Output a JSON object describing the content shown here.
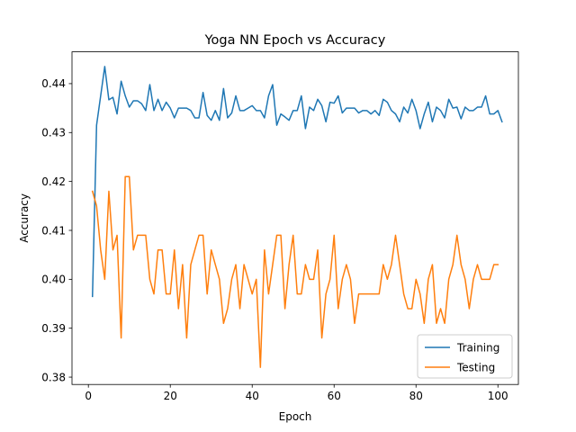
{
  "chart_data": {
    "type": "line",
    "title": "Yoga NN Epoch vs Accuracy",
    "xlabel": "Epoch",
    "ylabel": "Accuracy",
    "xlim": [
      -4,
      105
    ],
    "ylim": [
      0.3785,
      0.4465
    ],
    "xticks": [
      0,
      20,
      40,
      60,
      80,
      100
    ],
    "yticks": [
      0.38,
      0.39,
      0.4,
      0.41,
      0.42,
      0.43,
      0.44
    ],
    "ytick_labels": [
      "0.38",
      "0.39",
      "0.40",
      "0.41",
      "0.42",
      "0.43",
      "0.44"
    ],
    "grid": false,
    "legend_position": "lower-right",
    "series": [
      {
        "name": "Training",
        "color": "#1f77b4",
        "values": [
          0.3965,
          0.4315,
          0.4375,
          0.4435,
          0.4367,
          0.4372,
          0.4338,
          0.4405,
          0.4375,
          0.4352,
          0.4365,
          0.4365,
          0.4359,
          0.4345,
          0.4398,
          0.4345,
          0.4368,
          0.4345,
          0.4362,
          0.435,
          0.433,
          0.435,
          0.435,
          0.435,
          0.4345,
          0.433,
          0.433,
          0.4382,
          0.4335,
          0.4325,
          0.4345,
          0.4325,
          0.439,
          0.433,
          0.434,
          0.4375,
          0.4345,
          0.4345,
          0.435,
          0.4355,
          0.4345,
          0.4345,
          0.433,
          0.4375,
          0.4398,
          0.4315,
          0.4338,
          0.4332,
          0.4325,
          0.4345,
          0.4345,
          0.4375,
          0.4308,
          0.4352,
          0.4345,
          0.4368,
          0.4355,
          0.4322,
          0.4362,
          0.436,
          0.4375,
          0.434,
          0.435,
          0.435,
          0.435,
          0.434,
          0.4345,
          0.4345,
          0.4338,
          0.4345,
          0.4335,
          0.4368,
          0.4362,
          0.4345,
          0.4338,
          0.4322,
          0.4352,
          0.434,
          0.4368,
          0.4345,
          0.4308,
          0.4338,
          0.4362,
          0.4322,
          0.4352,
          0.4345,
          0.433,
          0.4368,
          0.435,
          0.4352,
          0.4328,
          0.4352,
          0.4345,
          0.4345,
          0.4352,
          0.4352,
          0.4375,
          0.4338,
          0.4338,
          0.4345,
          0.4322
        ]
      },
      {
        "name": "Testing",
        "color": "#ff7f0e",
        "values": [
          0.418,
          0.415,
          0.406,
          0.4,
          0.418,
          0.406,
          0.409,
          0.388,
          0.421,
          0.421,
          0.406,
          0.409,
          0.409,
          0.409,
          0.4,
          0.397,
          0.406,
          0.406,
          0.397,
          0.397,
          0.406,
          0.394,
          0.403,
          0.388,
          0.403,
          0.406,
          0.409,
          0.409,
          0.397,
          0.406,
          0.403,
          0.4,
          0.391,
          0.394,
          0.4,
          0.403,
          0.394,
          0.403,
          0.4,
          0.397,
          0.4,
          0.382,
          0.406,
          0.397,
          0.403,
          0.409,
          0.409,
          0.394,
          0.403,
          0.409,
          0.397,
          0.397,
          0.403,
          0.4,
          0.4,
          0.406,
          0.388,
          0.397,
          0.4,
          0.409,
          0.394,
          0.4,
          0.403,
          0.4,
          0.391,
          0.397,
          0.397,
          0.397,
          0.397,
          0.397,
          0.397,
          0.403,
          0.4,
          0.403,
          0.409,
          0.403,
          0.397,
          0.394,
          0.394,
          0.4,
          0.397,
          0.391,
          0.4,
          0.403,
          0.391,
          0.394,
          0.391,
          0.4,
          0.403,
          0.409,
          0.403,
          0.4,
          0.394,
          0.4,
          0.403,
          0.4,
          0.4,
          0.4,
          0.403,
          0.403
        ]
      }
    ]
  }
}
